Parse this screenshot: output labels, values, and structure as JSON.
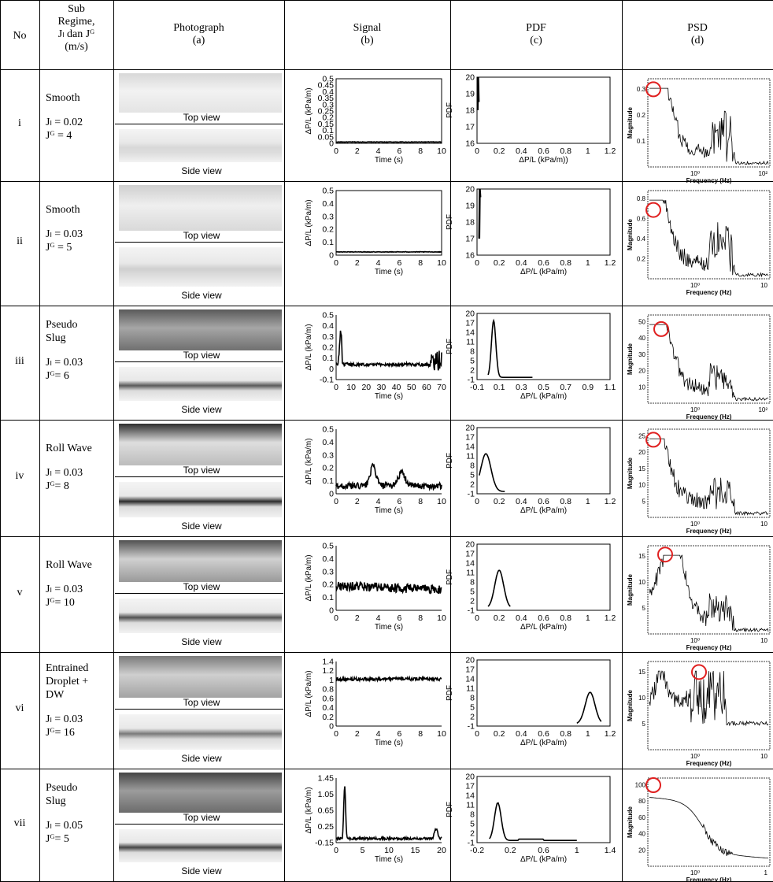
{
  "headers": {
    "no": "No",
    "regime_lines": [
      "Sub",
      "Regime,",
      "Jₗ dan Jᴳ",
      "(m/s)"
    ],
    "photo": [
      "Photograph",
      "(a)"
    ],
    "signal": [
      "Signal",
      "(b)"
    ],
    "pdf": [
      "PDF",
      "(c)"
    ],
    "psd": [
      "PSD",
      "(d)"
    ]
  },
  "captions": {
    "top": "Top view",
    "side": "Side view"
  },
  "axis_labels": {
    "signal_y": "ΔP/L (kPa/m)",
    "signal_x": "Time (s)",
    "pdf_y": "PDF",
    "pdf_x": "ΔP/L (kPa/m)",
    "pdf_x_row1": "ΔP/L (kPa/m))",
    "psd_y": "Magnitude",
    "psd_x": "Frequency (Hz)"
  },
  "rows": [
    {
      "no": "i",
      "regime": [
        "Smooth"
      ],
      "jl": "Jₗ = 0.02",
      "jg": "Jᴳ = 4"
    },
    {
      "no": "ii",
      "regime": [
        "Smooth"
      ],
      "jl": "Jₗ = 0.03",
      "jg": "Jᴳ = 5"
    },
    {
      "no": "iii",
      "regime": [
        "Pseudo",
        "Slug"
      ],
      "jl": "Jₗ = 0.03",
      "jg": "Jᴳ= 6"
    },
    {
      "no": "iv",
      "regime": [
        "Roll Wave"
      ],
      "jl": "Jₗ = 0.03",
      "jg": "Jᴳ= 8"
    },
    {
      "no": "v",
      "regime": [
        "Roll Wave"
      ],
      "jl": "Jₗ = 0.03",
      "jg": "Jᴳ= 10"
    },
    {
      "no": "vi",
      "regime": [
        "Entrained",
        "Droplet  +",
        "DW"
      ],
      "jl": "Jₗ = 0.03",
      "jg": "Jᴳ= 16"
    },
    {
      "no": "vii",
      "regime": [
        "Pseudo",
        "Slug"
      ],
      "jl": "Jₗ = 0.05",
      "jg": "Jᴳ= 5"
    }
  ],
  "chart_data": [
    {
      "id": "signal-i",
      "type": "line",
      "xlabel": "Time (s)",
      "ylabel": "ΔP/L (kPa/m)",
      "xticks": [
        "0",
        "2",
        "4",
        "6",
        "8",
        "10"
      ],
      "yticks": [
        "0",
        "0.05",
        "0.1",
        "0.15",
        "0.2",
        "0.25",
        "0.3",
        "0.35",
        "0.4",
        "0.45",
        "0.5"
      ],
      "xlim": [
        0,
        10
      ],
      "ylim": [
        0,
        0.5
      ],
      "series": [
        {
          "x": [
            0,
            10
          ],
          "y": [
            0.01,
            0.01
          ]
        }
      ]
    },
    {
      "id": "pdf-i",
      "type": "line",
      "xlabel": "ΔP/L (kPa/m))",
      "ylabel": "PDF",
      "xticks": [
        "0",
        "0.2",
        "0.4",
        "0.6",
        "0.8",
        "1",
        "1.2"
      ],
      "yticks": [
        "16",
        "17",
        "18",
        "19",
        "20"
      ],
      "xlim": [
        0,
        1.2
      ],
      "ylim": [
        16,
        20
      ],
      "series": [
        {
          "x": [
            0.005,
            0.01,
            0.015
          ],
          "y": [
            18,
            20,
            18.5
          ]
        }
      ]
    },
    {
      "id": "psd-i",
      "type": "line",
      "xlabel": "Frequency (Hz)",
      "ylabel": "Magnitude",
      "yticks": [
        "0.1",
        "0.2",
        "0.3"
      ],
      "xticks": [
        "10⁰",
        "10²"
      ],
      "ylim": [
        0,
        0.32
      ]
    },
    {
      "id": "signal-ii",
      "type": "line",
      "xlabel": "Time (s)",
      "ylabel": "ΔP/L (kPa/m)",
      "xticks": [
        "0",
        "2",
        "4",
        "6",
        "8",
        "10"
      ],
      "yticks": [
        "0",
        "0.1",
        "0.2",
        "0.3",
        "0.4",
        "0.5"
      ],
      "xlim": [
        0,
        10
      ],
      "ylim": [
        0,
        0.5
      ],
      "series": [
        {
          "x": [
            0,
            10
          ],
          "y": [
            0.025,
            0.025
          ]
        }
      ]
    },
    {
      "id": "pdf-ii",
      "type": "line",
      "xlabel": "ΔP/L (kPa/m)",
      "ylabel": "PDF",
      "xticks": [
        "0",
        "0.2",
        "0.4",
        "0.6",
        "0.8",
        "1",
        "1.2"
      ],
      "yticks": [
        "16",
        "17",
        "18",
        "19",
        "20"
      ],
      "xlim": [
        0,
        1.2
      ],
      "ylim": [
        16,
        20
      ],
      "series": [
        {
          "x": [
            0.02,
            0.025,
            0.03
          ],
          "y": [
            17,
            20,
            19.5
          ]
        }
      ]
    },
    {
      "id": "psd-ii",
      "type": "line",
      "xlabel": "Frequency (Hz)",
      "ylabel": "Magnitude",
      "yticks": [
        "0.2",
        "0.4",
        "0.6",
        "0.8"
      ],
      "xticks": [
        "10⁰",
        "10"
      ],
      "ylim": [
        0,
        0.8
      ]
    },
    {
      "id": "signal-iii",
      "type": "line",
      "xlabel": "Time (s)",
      "ylabel": "ΔP/L (kPa/m)",
      "xticks": [
        "0",
        "10",
        "20",
        "30",
        "40",
        "50",
        "60",
        "70"
      ],
      "yticks": [
        "-0.1",
        "0",
        "0.1",
        "0.2",
        "0.3",
        "0.4",
        "0.5"
      ],
      "xlim": [
        0,
        70
      ],
      "ylim": [
        -0.1,
        0.5
      ],
      "series": [
        {
          "x": [
            0,
            3,
            70
          ],
          "y": [
            0.04,
            0.36,
            0.04
          ]
        }
      ]
    },
    {
      "id": "pdf-iii",
      "type": "line",
      "xlabel": "ΔP/L (kPa/m)",
      "ylabel": "PDF",
      "xticks": [
        "-0.1",
        "0.1",
        "0.3",
        "0.5",
        "0.7",
        "0.9",
        "1.1"
      ],
      "yticks": [
        "-1",
        "2",
        "5",
        "8",
        "11",
        "14",
        "17",
        "20"
      ],
      "xlim": [
        -0.1,
        1.1
      ],
      "ylim": [
        -1,
        20
      ],
      "series": [
        {
          "x": [
            0,
            0.05,
            0.1,
            0.4
          ],
          "y": [
            0,
            18,
            1,
            0
          ]
        }
      ]
    },
    {
      "id": "psd-iii",
      "type": "line",
      "xlabel": "Frequency (Hz)",
      "ylabel": "Magnitude",
      "yticks": [
        "10",
        "20",
        "30",
        "40",
        "50"
      ],
      "xticks": [
        "10⁰",
        "10²"
      ],
      "ylim": [
        0,
        50
      ]
    },
    {
      "id": "signal-iv",
      "type": "line",
      "xlabel": "Time (s)",
      "ylabel": "ΔP/L (kPa/m)",
      "xticks": [
        "0",
        "2",
        "4",
        "6",
        "8",
        "10"
      ],
      "yticks": [
        "0",
        "0.1",
        "0.2",
        "0.3",
        "0.4",
        "0.5"
      ],
      "xlim": [
        0,
        10
      ],
      "ylim": [
        0,
        0.5
      ],
      "series": [
        {
          "x": [
            0,
            3.5,
            6,
            10
          ],
          "y": [
            0.05,
            0.24,
            0.18,
            0.08
          ]
        }
      ]
    },
    {
      "id": "pdf-iv",
      "type": "line",
      "xlabel": "ΔP/L (kPa/m)",
      "ylabel": "PDF",
      "xticks": [
        "0",
        "0.2",
        "0.4",
        "0.6",
        "0.8",
        "1",
        "1.2"
      ],
      "yticks": [
        "-1",
        "2",
        "5",
        "8",
        "11",
        "14",
        "17",
        "20"
      ],
      "xlim": [
        0,
        1.2
      ],
      "ylim": [
        -1,
        20
      ],
      "series": [
        {
          "x": [
            0.02,
            0.08,
            0.25
          ],
          "y": [
            0,
            12,
            0
          ]
        }
      ]
    },
    {
      "id": "psd-iv",
      "type": "line",
      "xlabel": "Frequency (Hz)",
      "ylabel": "Magnitude",
      "yticks": [
        "5",
        "10",
        "15",
        "20",
        "25"
      ],
      "xticks": [
        "10⁰",
        "10"
      ],
      "ylim": [
        0,
        25
      ]
    },
    {
      "id": "signal-v",
      "type": "line",
      "xlabel": "Time (s)",
      "ylabel": "ΔP/L (kPa/m)",
      "xticks": [
        "0",
        "2",
        "4",
        "6",
        "8",
        "10"
      ],
      "yticks": [
        "0",
        "0.1",
        "0.2",
        "0.3",
        "0.4",
        "0.5"
      ],
      "xlim": [
        0,
        10
      ],
      "ylim": [
        0,
        0.5
      ],
      "series": [
        {
          "x": [
            0,
            10
          ],
          "y": [
            0.19,
            0.16
          ]
        }
      ]
    },
    {
      "id": "pdf-v",
      "type": "line",
      "xlabel": "ΔP/L (kPa/m)",
      "ylabel": "PDF",
      "xticks": [
        "0",
        "0.2",
        "0.4",
        "0.6",
        "0.8",
        "1",
        "1.2"
      ],
      "yticks": [
        "-1",
        "2",
        "5",
        "8",
        "11",
        "14",
        "17",
        "20"
      ],
      "xlim": [
        0,
        1.2
      ],
      "ylim": [
        -1,
        20
      ],
      "series": [
        {
          "x": [
            0.1,
            0.2,
            0.3
          ],
          "y": [
            0,
            12,
            0
          ]
        }
      ]
    },
    {
      "id": "psd-v",
      "type": "line",
      "xlabel": "Frequency (Hz)",
      "ylabel": "Magnitude",
      "yticks": [
        "5",
        "10",
        "15"
      ],
      "xticks": [
        "10⁰",
        "10"
      ],
      "ylim": [
        0,
        15
      ]
    },
    {
      "id": "signal-vi",
      "type": "line",
      "xlabel": "Time (s)",
      "ylabel": "ΔP/L (kPa/m)",
      "xticks": [
        "0",
        "2",
        "4",
        "6",
        "8",
        "10"
      ],
      "yticks": [
        "0",
        "0.2",
        "0.4",
        "0.6",
        "0.8",
        "1",
        "1.2",
        "1.4"
      ],
      "xlim": [
        0,
        10
      ],
      "ylim": [
        0,
        1.4
      ],
      "series": [
        {
          "x": [
            0,
            10
          ],
          "y": [
            1.02,
            1.02
          ]
        }
      ]
    },
    {
      "id": "pdf-vi",
      "type": "line",
      "xlabel": "ΔP/L (kPa/m)",
      "ylabel": "PDF",
      "xticks": [
        "0",
        "0.2",
        "0.4",
        "0.6",
        "0.8",
        "1",
        "1.2"
      ],
      "yticks": [
        "-1",
        "2",
        "5",
        "8",
        "11",
        "14",
        "17",
        "20"
      ],
      "xlim": [
        0,
        1.2
      ],
      "ylim": [
        -1,
        20
      ],
      "series": [
        {
          "x": [
            0.9,
            1.02,
            1.12
          ],
          "y": [
            0,
            10,
            0
          ]
        }
      ]
    },
    {
      "id": "psd-vi",
      "type": "line",
      "xlabel": "Frequency (Hz)",
      "ylabel": "Magnitude",
      "yticks": [
        "5",
        "10",
        "15"
      ],
      "xticks": [
        "10⁰",
        "10"
      ],
      "ylim": [
        0,
        15
      ]
    },
    {
      "id": "signal-vii",
      "type": "line",
      "xlabel": "Time (s)",
      "ylabel": "ΔP/L (kPa/m)",
      "xticks": [
        "0",
        "5",
        "10",
        "15",
        "20"
      ],
      "yticks": [
        "-0.15",
        "0.25",
        "0.65",
        "1.05",
        "1.45"
      ],
      "xlim": [
        0,
        21
      ],
      "ylim": [
        -0.15,
        1.45
      ],
      "series": [
        {
          "x": [
            0,
            1.5,
            2,
            21
          ],
          "y": [
            0,
            1.45,
            0,
            0
          ]
        }
      ]
    },
    {
      "id": "pdf-vii",
      "type": "line",
      "xlabel": "ΔP/L (kPa/m)",
      "ylabel": "PDF",
      "xticks": [
        "-0.2",
        "0.2",
        "0.6",
        "1",
        "1.4"
      ],
      "yticks": [
        "-1",
        "2",
        "5",
        "8",
        "11",
        "14",
        "17",
        "20"
      ],
      "xlim": [
        -0.2,
        1.4
      ],
      "ylim": [
        -1,
        20
      ],
      "series": [
        {
          "x": [
            -0.05,
            0.05,
            0.15,
            1
          ],
          "y": [
            0,
            12,
            0.5,
            0
          ]
        }
      ]
    },
    {
      "id": "psd-vii",
      "type": "line",
      "xlabel": "Frequency (Hz)",
      "ylabel": "Magnitude",
      "yticks": [
        "20",
        "40",
        "60",
        "80",
        "100"
      ],
      "xticks": [
        "10⁰",
        "1"
      ],
      "ylim": [
        0,
        100
      ]
    }
  ]
}
